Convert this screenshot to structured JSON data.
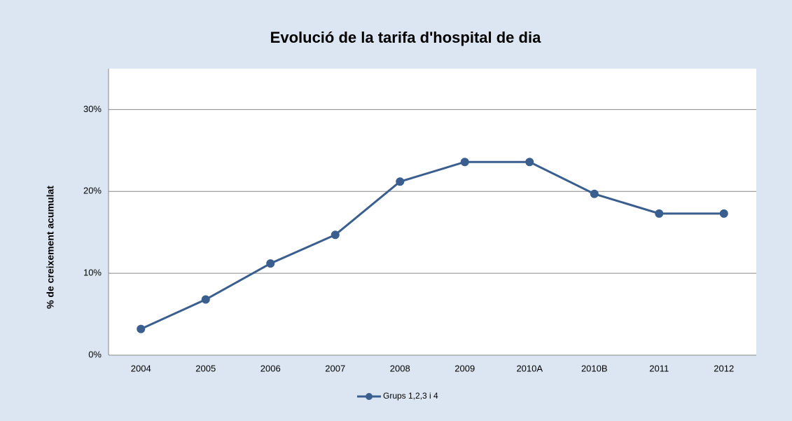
{
  "chart_data": {
    "type": "line",
    "title": "Evolució de la tarifa d'hospital de dia",
    "y_label": "% de creixement acumulat",
    "categories": [
      "2004",
      "2005",
      "2006",
      "2007",
      "2008",
      "2009",
      "2010A",
      "2010B",
      "2011",
      "2012"
    ],
    "series": [
      {
        "name": "Grups 1,2,3 i 4",
        "color": "#3a5f8f",
        "values": [
          3.2,
          6.8,
          11.2,
          14.7,
          21.2,
          23.6,
          23.6,
          19.7,
          17.3,
          17.3
        ]
      }
    ],
    "ylim": [
      0,
      35
    ],
    "yticks": [
      {
        "value": 0,
        "label": "0%"
      },
      {
        "value": 10,
        "label": "10%"
      },
      {
        "value": 20,
        "label": "20%"
      },
      {
        "value": 30,
        "label": "30%"
      }
    ],
    "grid": true,
    "legend": "bottom"
  }
}
